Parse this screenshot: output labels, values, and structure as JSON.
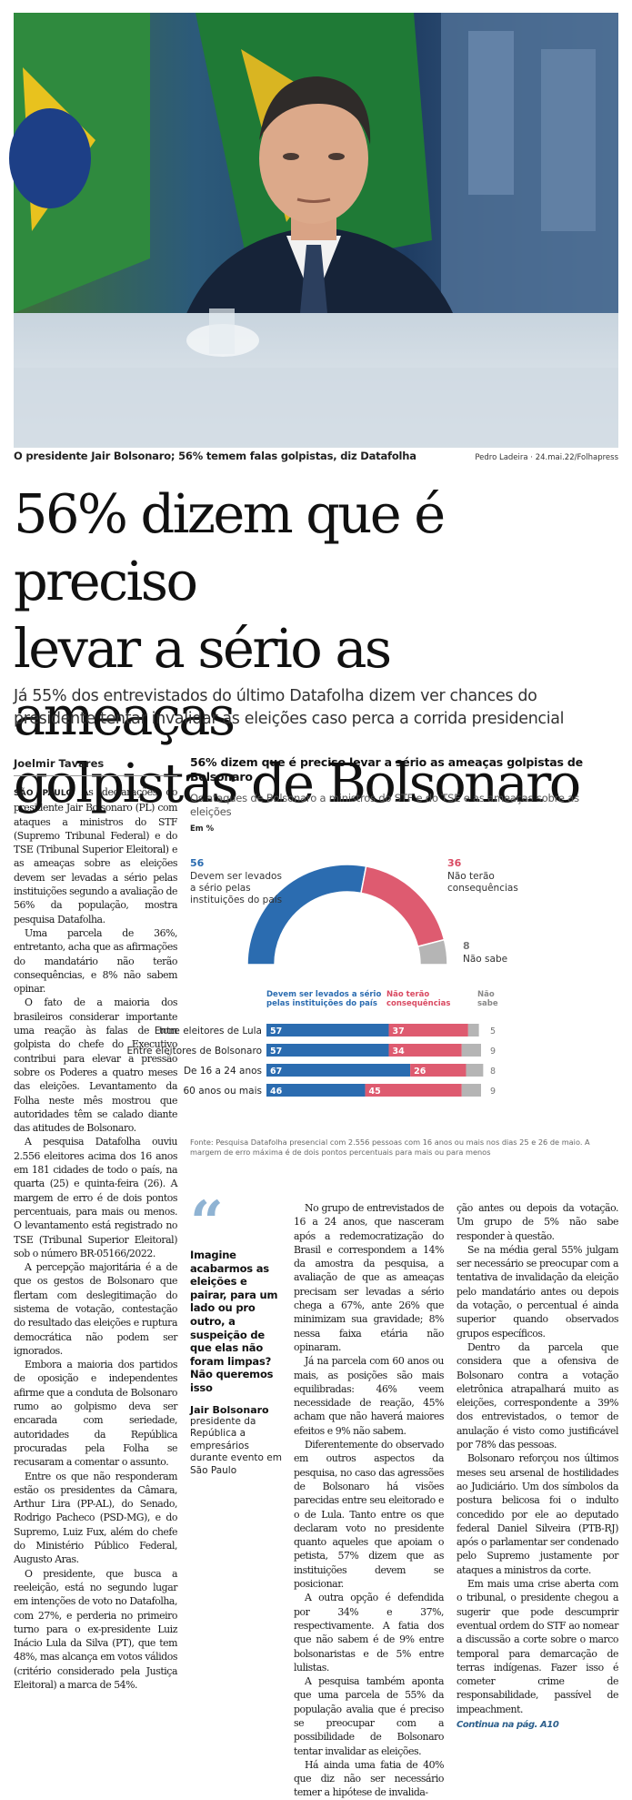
{
  "photo": {
    "caption": "O presidente Jair Bolsonaro; 56% temem falas golpistas, diz Datafolha",
    "credit": "Pedro Ladeira · 24.mai.22/Folhapress"
  },
  "headline": {
    "line1": "56% dizem que é preciso",
    "line2": "levar a sério as ameaças",
    "line3": "golpistas de Bolsonaro"
  },
  "subhead": "Já 55% dos entrevistados do último Datafolha dizem ver chances do presidente tentar invalidar as eleições caso perca a corrida presidencial",
  "article": {
    "byline": "Joelmir Tavares",
    "dateline": "SÃO PAULO",
    "left_paragraphs": [
      "As declarações do presidente Jair Bolsonaro (PL) com ataques a ministros do STF (Supremo Tribunal Federal) e do TSE (Tribunal Superior Eleitoral) e as ameaças sobre as eleições devem ser levadas a sério pelas instituições segundo a avaliação de 56% da população, mostra pesquisa Datafolha.",
      "Uma parcela de 36%, entretanto, acha que as afirmações do mandatário não terão consequências, e 8% não sabem opinar.",
      "O fato de a maioria dos brasileiros considerar importante uma reação às falas de tom golpista do chefe do Executivo contribui para elevar a pressão sobre os Poderes a quatro meses das eleições. Levantamento da Folha neste mês mostrou que autoridades têm se calado diante das atitudes de Bolsonaro.",
      "A pesquisa Datafolha ouviu 2.556 eleitores acima dos 16 anos em 181 cidades de todo o país, na quarta (25) e quinta-feira (26). A margem de erro é de dois pontos percentuais, para mais ou menos. O levantamento está registrado no TSE (Tribunal Superior Eleitoral) sob o número BR-05166/2022.",
      "A percepção majoritária é a de que os gestos de Bolsonaro que flertam com deslegitimação do sistema de votação, contestação do resultado das eleições e ruptura democrática não podem ser ignorados.",
      "Embora a maioria dos partidos de oposição e independentes afirme que a conduta de Bolsonaro rumo ao golpismo deva ser encarada com seriedade, autoridades da República procuradas pela Folha se recusaram a comentar o assunto.",
      "Entre os que não responderam estão os presidentes da Câmara, Arthur Lira (PP-AL), do Senado, Rodrigo Pacheco (PSD-MG), e do Supremo, Luiz Fux, além do chefe do Ministério Público Federal, Augusto Aras.",
      "O presidente, que busca a reeleição, está no segundo lugar em intenções de voto no Datafolha, com 27%, e perderia no primeiro turno para o ex-presidente Luiz Inácio Lula da Silva (PT), que tem 48%, mas alcança em votos válidos (critério considerado pela Justiça Eleitoral) a marca de 54%."
    ],
    "mid_paragraphs": [
      "No grupo de entrevistados de 16 a 24 anos, que nasceram após a redemocratização do Brasil e correspondem a 14% da amostra da pesquisa, a avaliação de que as ameaças precisam ser levadas a sério chega a 67%, ante 26% que minimizam sua gravidade; 8% nessa faixa etária não opinaram.",
      "Já na parcela com 60 anos ou mais, as posições são mais equilibradas: 46% veem necessidade de reação, 45% acham que não haverá maiores efeitos e 9% não sabem.",
      "Diferentemente do observado em outros aspectos da pesquisa, no caso das agressões de Bolsonaro há visões parecidas entre seu eleitorado e o de Lula. Tanto entre os que declaram voto no presidente quanto aqueles que apoiam o petista, 57% dizem que as instituições devem se posicionar.",
      "A outra opção é defendida por 34% e 37%, respectivamente. A fatia dos que não sabem é de 9% entre bolsonaristas e de 5% entre lulistas.",
      "A pesquisa também aponta que uma parcela de 55% da população avalia que é preciso se preocupar com a possibilidade de Bolsonaro tentar invalidar as eleições.",
      "Há ainda uma fatia de 40% que diz não ser necessário temer a hipótese de invalida-"
    ],
    "right_paragraphs": [
      "ção antes ou depois da votação. Um grupo de 5% não sabe responder à questão.",
      "Se na média geral 55% julgam ser necessário se preocupar com a tentativa de invalidação da eleição pelo mandatário antes ou depois da votação, o percentual é ainda superior quando observados grupos específicos.",
      "Dentro da parcela que considera que a ofensiva de Bolsonaro contra a votação eletrônica atrapalhará muito as eleições, correspondente a 39% dos entrevistados, o temor de anulação é visto como justificável por 78% das pessoas.",
      "Bolsonaro reforçou nos últimos meses seu arsenal de hostilidades ao Judiciário. Um dos símbolos da postura belicosa foi o indulto concedido por ele ao deputado federal Daniel Silveira (PTB-RJ) após o parlamentar ser condenado pelo Supremo justamente por ataques a ministros da corte.",
      "Em mais uma crise aberta com o tribunal, o presidente chegou a sugerir que pode descumprir eventual ordem do STF ao nomear a discussão a corte sobre o marco temporal para demarcação de terras indígenas. Fazer isso é cometer crime de responsabilidade, passível de impeachment."
    ],
    "continue": "Continua na pág. A10"
  },
  "quote": {
    "text": "Imagine acabarmos as eleições e pairar, para um lado ou pro outro, a suspeição de que elas não foram limpas? Não queremos isso",
    "author": "Jair Bolsonaro",
    "role": "presidente da República a empresários durante evento em São Paulo"
  },
  "colors": {
    "blue": "#2b6cb0",
    "red": "#de5b70",
    "gray": "#b5b5b5",
    "blue_label": "#2b6cb0",
    "red_label": "#d94a62"
  },
  "chart_data": [
    {
      "type": "pie",
      "title": "56% dizem que é preciso levar a sério as ameaças golpistas de Bolsonaro",
      "subtitle": "Os ataques de Bolsonaro a ministros do STF e do TSE e as ameaças sobre as eleições",
      "unit": "Em %",
      "slices": [
        {
          "value": 56,
          "label": "Devem ser levados a sério pelas instituições do país"
        },
        {
          "value": 36,
          "label": "Não terão consequências"
        },
        {
          "value": 8,
          "label": "Não sabe"
        }
      ]
    },
    {
      "type": "bar",
      "stacked": true,
      "orientation": "horizontal",
      "series_names": [
        "Devem ser levados a sério pelas instituições do país",
        "Não terão consequências",
        "Não sabe"
      ],
      "categories": [
        "Entre eleitores de Lula",
        "Entre eleitores de Bolsonaro",
        "De 16 a 24 anos",
        "60 anos ou mais"
      ],
      "series": [
        {
          "name": "Devem ser levados a sério pelas instituições do país",
          "values": [
            57,
            57,
            67,
            46
          ]
        },
        {
          "name": "Não terão consequências",
          "values": [
            37,
            34,
            26,
            45
          ]
        },
        {
          "name": "Não sabe",
          "values": [
            5,
            9,
            8,
            9
          ]
        }
      ],
      "source": "Fonte: Pesquisa Datafolha presencial com 2.556 pessoas com 16 anos ou mais nos dias 25 e 26 de maio. A margem de erro máxima é de dois pontos percentuais para mais ou para menos"
    }
  ]
}
